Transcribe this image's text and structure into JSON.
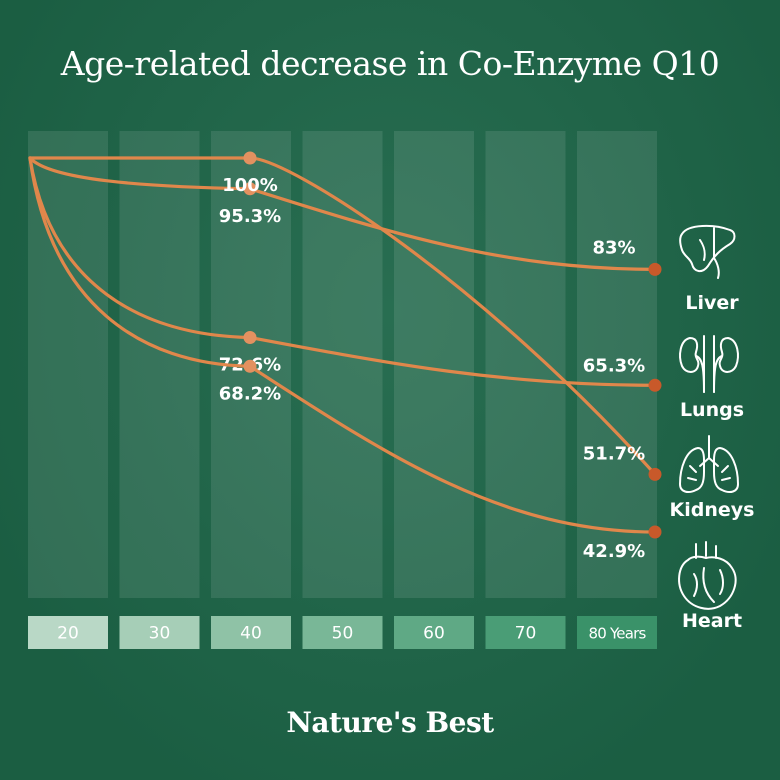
{
  "title": "Age-related decrease in Co-Enzyme Q10",
  "logo": "Nature's Best",
  "colors": {
    "background": "#1d6648",
    "column": "#3a7d60",
    "line": "#e0874b",
    "marker": "#e39160",
    "endpoint": "#c8592a",
    "text": "#ffffff"
  },
  "chart_data": {
    "type": "line",
    "title": "Age-related decrease in Co-Enzyme Q10",
    "x_categories": [
      "20",
      "30",
      "40",
      "50",
      "60",
      "70",
      "80 Years"
    ],
    "x": [
      20,
      30,
      40,
      50,
      60,
      70,
      80
    ],
    "series": [
      {
        "name": "Liver",
        "icon": "liver-icon",
        "points": [
          [
            20,
            100
          ],
          [
            40,
            95.3
          ],
          [
            80,
            83
          ]
        ],
        "labels": [
          "",
          "95.3%",
          "83%"
        ]
      },
      {
        "name": "Lungs",
        "icon": "lungs-icon",
        "points": [
          [
            20,
            100
          ],
          [
            40,
            72.6
          ],
          [
            80,
            65.3
          ]
        ],
        "labels": [
          "",
          "72.6%",
          "65.3%"
        ]
      },
      {
        "name": "Kidneys",
        "icon": "kidneys-icon",
        "points": [
          [
            20,
            100
          ],
          [
            40,
            100
          ],
          [
            80,
            51.7
          ]
        ],
        "labels": [
          "",
          "100%",
          "51.7%"
        ]
      },
      {
        "name": "Heart",
        "icon": "heart-icon",
        "points": [
          [
            20,
            100
          ],
          [
            40,
            68.2
          ],
          [
            80,
            42.9
          ]
        ],
        "labels": [
          "",
          "68.2%",
          "42.9%"
        ]
      }
    ]
  }
}
